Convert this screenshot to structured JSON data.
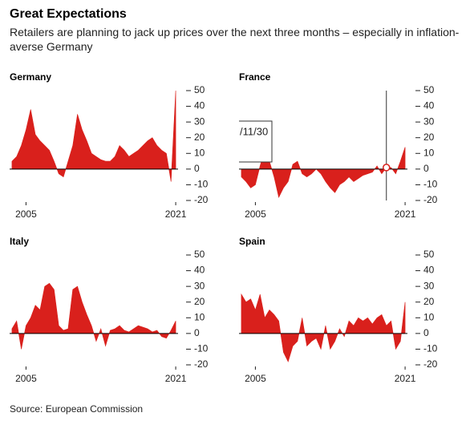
{
  "title": "Great Expectations",
  "subtitle": "Retailers are planning to jack up prices over the next three months – especially in inflation-averse Germany",
  "source": "Source: European Commission",
  "chart_data": [
    {
      "type": "area",
      "title": "Germany",
      "color": "#d9201c",
      "x": [
        2003.5,
        2004,
        2004.5,
        2005,
        2005.5,
        2006,
        2006.5,
        2007,
        2007.5,
        2008,
        2008.5,
        2009,
        2009.5,
        2010,
        2010.5,
        2011,
        2011.5,
        2012,
        2012.5,
        2013,
        2013.5,
        2014,
        2014.5,
        2015,
        2015.5,
        2016,
        2016.5,
        2017,
        2017.5,
        2018,
        2018.5,
        2019,
        2019.5,
        2020,
        2020.5,
        2021
      ],
      "values": [
        5,
        8,
        15,
        25,
        38,
        22,
        18,
        15,
        12,
        5,
        -3,
        -5,
        5,
        15,
        35,
        25,
        18,
        10,
        8,
        6,
        5,
        5,
        8,
        15,
        12,
        8,
        10,
        12,
        15,
        18,
        20,
        15,
        12,
        10,
        -8,
        50
      ],
      "xlim": [
        2003.25,
        2021.25
      ],
      "xticks": [
        2005,
        2021
      ],
      "ylim": [
        -20,
        50
      ],
      "yticks": [
        50,
        40,
        30,
        20,
        10,
        0,
        -10,
        -20
      ]
    },
    {
      "type": "area",
      "title": "France",
      "color": "#d9201c",
      "x": [
        2003.5,
        2004,
        2004.5,
        2005,
        2005.5,
        2006,
        2006.5,
        2007,
        2007.5,
        2008,
        2008.5,
        2009,
        2009.5,
        2010,
        2010.5,
        2011,
        2011.5,
        2012,
        2012.5,
        2013,
        2013.5,
        2014,
        2014.5,
        2015,
        2015.5,
        2016,
        2016.5,
        2017,
        2017.5,
        2018,
        2018.5,
        2019,
        2019.5,
        2020,
        2020.5,
        2021
      ],
      "values": [
        -5,
        -8,
        -12,
        -10,
        2,
        12,
        5,
        -5,
        -18,
        -12,
        -8,
        3,
        5,
        -3,
        -5,
        -3,
        0,
        -3,
        -8,
        -12,
        -15,
        -10,
        -8,
        -5,
        -8,
        -6,
        -4,
        -3,
        -2,
        2,
        -3,
        1,
        1,
        -3,
        5,
        14
      ],
      "xlim": [
        2003.25,
        2021.25
      ],
      "xticks": [
        2005,
        2021
      ],
      "ylim": [
        -20,
        50
      ],
      "yticks": [
        50,
        40,
        30,
        20,
        10,
        0,
        -10,
        -20
      ],
      "annotation": {
        "text": "/11/30",
        "x": 2019
      }
    },
    {
      "type": "area",
      "title": "Italy",
      "color": "#d9201c",
      "x": [
        2003.5,
        2004,
        2004.5,
        2005,
        2005.5,
        2006,
        2006.5,
        2007,
        2007.5,
        2008,
        2008.5,
        2009,
        2009.5,
        2010,
        2010.5,
        2011,
        2011.5,
        2012,
        2012.5,
        2013,
        2013.5,
        2014,
        2014.5,
        2015,
        2015.5,
        2016,
        2016.5,
        2017,
        2017.5,
        2018,
        2018.5,
        2019,
        2019.5,
        2020,
        2020.5,
        2021
      ],
      "values": [
        3,
        8,
        -10,
        5,
        10,
        18,
        15,
        30,
        32,
        28,
        5,
        2,
        3,
        28,
        30,
        20,
        12,
        5,
        -5,
        3,
        -8,
        2,
        3,
        5,
        2,
        1,
        3,
        5,
        4,
        3,
        1,
        2,
        -2,
        -3,
        2,
        8
      ],
      "xlim": [
        2003.25,
        2021.25
      ],
      "xticks": [
        2005,
        2021
      ],
      "ylim": [
        -20,
        50
      ],
      "yticks": [
        50,
        40,
        30,
        20,
        10,
        0,
        -10,
        -20
      ]
    },
    {
      "type": "area",
      "title": "Spain",
      "color": "#d9201c",
      "x": [
        2003.5,
        2004,
        2004.5,
        2005,
        2005.5,
        2006,
        2006.5,
        2007,
        2007.5,
        2008,
        2008.5,
        2009,
        2009.5,
        2010,
        2010.5,
        2011,
        2011.5,
        2012,
        2012.5,
        2013,
        2013.5,
        2014,
        2014.5,
        2015,
        2015.5,
        2016,
        2016.5,
        2017,
        2017.5,
        2018,
        2018.5,
        2019,
        2019.5,
        2020,
        2020.5,
        2021
      ],
      "values": [
        25,
        20,
        22,
        15,
        25,
        10,
        15,
        12,
        8,
        -12,
        -18,
        -8,
        -5,
        10,
        -8,
        -5,
        -3,
        -10,
        5,
        -10,
        -5,
        3,
        -2,
        8,
        5,
        10,
        8,
        10,
        6,
        10,
        12,
        5,
        8,
        -10,
        -5,
        20
      ],
      "xlim": [
        2003.25,
        2021.25
      ],
      "xticks": [
        2005,
        2021
      ],
      "ylim": [
        -20,
        50
      ],
      "yticks": [
        50,
        40,
        30,
        20,
        10,
        0,
        -10,
        -20
      ]
    }
  ]
}
